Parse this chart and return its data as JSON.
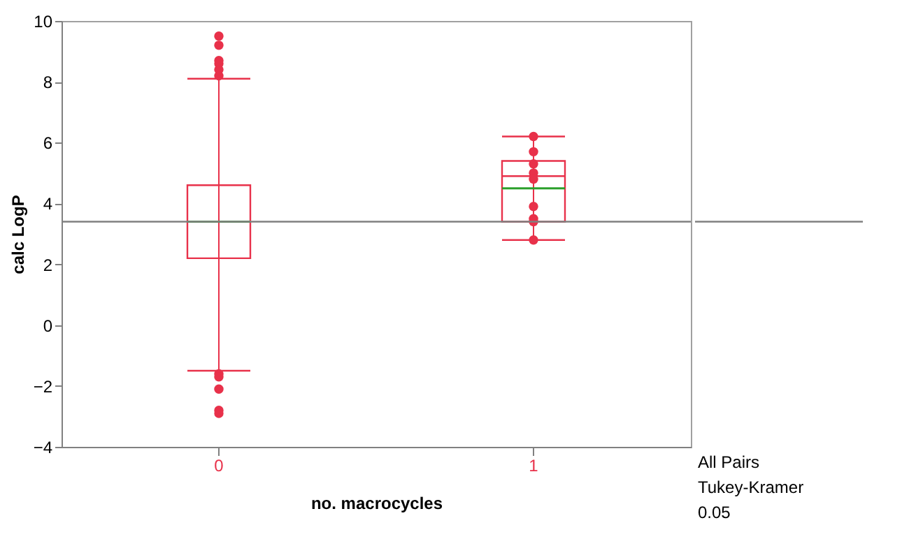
{
  "chart_data": {
    "type": "box",
    "xlabel": "no. macrocycles",
    "ylabel": "calc LogP",
    "categories": [
      "0",
      "1"
    ],
    "ylim": [
      -4,
      10
    ],
    "yticks": [
      -4,
      -2,
      0,
      2,
      4,
      6,
      8,
      10
    ],
    "grid": false,
    "series": [
      {
        "type": "box",
        "color": "#e8314a",
        "boxes": [
          {
            "low": -1.5,
            "q1": 2.2,
            "median": 3.4,
            "q3": 4.6,
            "high": 8.1,
            "mean": 3.4,
            "outliers": [
              8.2,
              8.4,
              8.6,
              8.7,
              9.2,
              9.5,
              -1.6,
              -1.7,
              -2.1,
              -2.8,
              -2.9
            ]
          },
          {
            "low": 2.8,
            "q1": 3.4,
            "median": 4.9,
            "q3": 5.4,
            "high": 6.2,
            "mean": 4.5
          }
        ]
      },
      {
        "type": "scatter",
        "color": "#e8314a",
        "x": [
          "1",
          "1",
          "1",
          "1",
          "1",
          "1",
          "1",
          "1",
          "1"
        ],
        "values": [
          6.2,
          5.7,
          5.3,
          5.0,
          4.8,
          3.9,
          3.5,
          3.4,
          2.8
        ]
      }
    ],
    "ref_lines": [
      {
        "axis": "y",
        "value": 3.4,
        "color": "#808080"
      }
    ],
    "annotations": [
      "All Pairs\nTukey-Kramer\n 0.05"
    ]
  }
}
